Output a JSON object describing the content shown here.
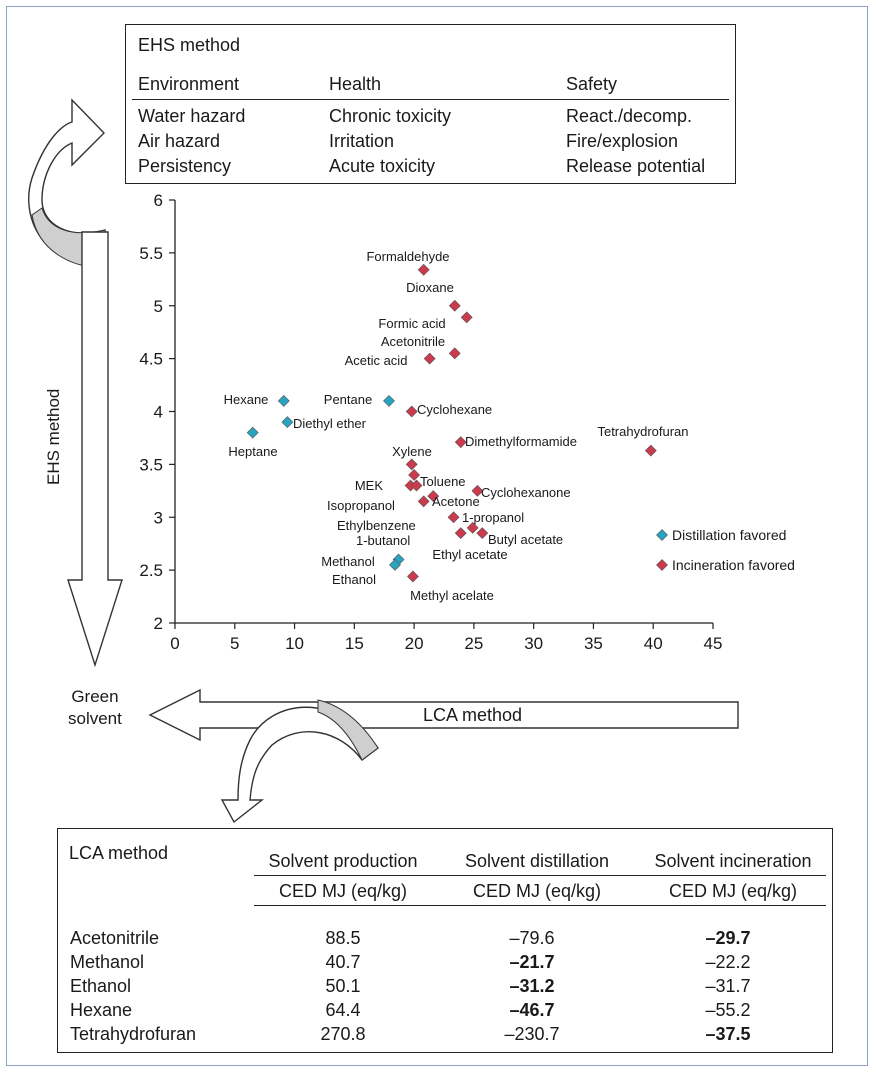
{
  "ehs_table": {
    "title": "EHS method",
    "headers": [
      "Environment",
      "Health",
      "Safety"
    ],
    "columns": [
      [
        "Water hazard",
        "Air hazard",
        "Persistency"
      ],
      [
        "Chronic toxicity",
        "Irritation",
        "Acute toxicity"
      ],
      [
        "React./decomp.",
        "Fire/explosion",
        "Release potential"
      ]
    ]
  },
  "arrows": {
    "vertical_label": "EHS method",
    "horizontal_label": "LCA method",
    "green_solvent": "Green\nsolvent"
  },
  "colors": {
    "distillation": "#2aa3c0",
    "incineration": "#cc3a4e",
    "arrow_fill": "#cfcfcf"
  },
  "chart_data": {
    "type": "scatter",
    "title": "",
    "xlabel": "",
    "ylabel": "",
    "xlim": [
      0,
      45
    ],
    "ylim": [
      2,
      6
    ],
    "xticks": [
      0,
      5,
      10,
      15,
      20,
      25,
      30,
      35,
      40,
      45
    ],
    "yticks": [
      2,
      2.5,
      3,
      3.5,
      4,
      4.5,
      5,
      5.5,
      6
    ],
    "xtick_labels": [
      "0",
      "5",
      "10",
      "15",
      "20",
      "25",
      "30",
      "35",
      "40",
      "45"
    ],
    "ytick_labels": [
      "2",
      "2.5",
      "3",
      "3.5",
      "4",
      "4.5",
      "5",
      "5.5",
      "6"
    ],
    "grid": false,
    "legend": {
      "placement": "right",
      "entries": [
        {
          "name": "Distillation favored",
          "color": "#2aa3c0"
        },
        {
          "name": "Incineration favored",
          "color": "#cc3a4e"
        }
      ]
    },
    "series": [
      {
        "name": "Distillation favored",
        "color": "#2aa3c0",
        "points": [
          {
            "label": "Hexane",
            "x": 9.1,
            "y": 4.1
          },
          {
            "label": "Diethyl ether",
            "x": 9.4,
            "y": 3.9
          },
          {
            "label": "Heptane",
            "x": 6.5,
            "y": 3.8
          },
          {
            "label": "Pentane",
            "x": 17.9,
            "y": 4.1
          },
          {
            "label": "Methanol",
            "x": 18.7,
            "y": 2.6
          },
          {
            "label": "Ethanol",
            "x": 18.4,
            "y": 2.55
          }
        ]
      },
      {
        "name": "Incineration favored",
        "color": "#cc3a4e",
        "points": [
          {
            "label": "Formaldehyde",
            "x": 20.8,
            "y": 5.34
          },
          {
            "label": "Dioxane",
            "x": 23.4,
            "y": 5.0
          },
          {
            "label": "Formic acid",
            "x": 24.4,
            "y": 4.89
          },
          {
            "label": "Acetonitrile",
            "x": 23.4,
            "y": 4.55
          },
          {
            "label": "Acetic acid",
            "x": 21.3,
            "y": 4.5
          },
          {
            "label": "Cyclohexane",
            "x": 19.8,
            "y": 4.0
          },
          {
            "label": "Dimethylformamide",
            "x": 23.9,
            "y": 3.71
          },
          {
            "label": "Tetrahydrofuran",
            "x": 39.8,
            "y": 3.63
          },
          {
            "label": "Xylene",
            "x": 19.8,
            "y": 3.5
          },
          {
            "label": "Toluene",
            "x": 20.0,
            "y": 3.4
          },
          {
            "label": "MEK",
            "x": 19.7,
            "y": 3.3
          },
          {
            "label": "Isopropanol",
            "x": 20.2,
            "y": 3.3
          },
          {
            "label": "Cyclohexanone",
            "x": 25.3,
            "y": 3.25
          },
          {
            "label": "Acetone",
            "x": 21.6,
            "y": 3.2
          },
          {
            "label": "Isopropanol",
            "x": 20.8,
            "y": 3.15
          },
          {
            "label": "Ethylbenzene",
            "x": 23.3,
            "y": 3.0
          },
          {
            "label": "1-propanol",
            "x": 24.9,
            "y": 2.9
          },
          {
            "label": "1-butanol",
            "x": 23.9,
            "y": 2.85
          },
          {
            "label": "Butyl acetate",
            "x": 25.7,
            "y": 2.85
          },
          {
            "label": "Methyl acelate",
            "x": 19.9,
            "y": 2.44
          }
        ]
      }
    ],
    "annotations": [
      "Formaldehyde",
      "Dioxane",
      "Formic acid",
      "Acetonitrile",
      "Acetic acid",
      "Hexane",
      "Pentane",
      "Cyclohexane",
      "Diethyl ether",
      "Heptane",
      "Tetrahydrofuran",
      "Dimethylformamide",
      "Xylene",
      "MEK",
      "Toluene",
      "Cyclohexanone",
      "Isopropanol",
      "Acetone",
      "1-propanol",
      "Ethylbenzene",
      "1-butanol",
      "Butyl acetate",
      "Ethyl acetate",
      "Methanol",
      "Ethanol",
      "Methyl acelate"
    ]
  },
  "lca_table": {
    "title": "LCA method",
    "columns": [
      "Solvent production",
      "Solvent distillation",
      "Solvent incineration"
    ],
    "units": [
      "CED MJ (eq/kg)",
      "CED MJ (eq/kg)",
      "CED MJ (eq/kg)"
    ],
    "rows": [
      {
        "name": "Acetonitrile",
        "production": "88.5",
        "distillation": "–79.6",
        "incineration": "–29.7",
        "bold": "incineration"
      },
      {
        "name": "Methanol",
        "production": "40.7",
        "distillation": "–21.7",
        "incineration": "–22.2",
        "bold": "distillation"
      },
      {
        "name": "Ethanol",
        "production": "50.1",
        "distillation": "–31.2",
        "incineration": "–31.7",
        "bold": "distillation"
      },
      {
        "name": "Hexane",
        "production": "64.4",
        "distillation": "–46.7",
        "incineration": "–55.2",
        "bold": "distillation"
      },
      {
        "name": "Tetrahydrofuran",
        "production": "270.8",
        "distillation": "–230.7",
        "incineration": "–37.5",
        "bold": "incineration"
      }
    ]
  }
}
